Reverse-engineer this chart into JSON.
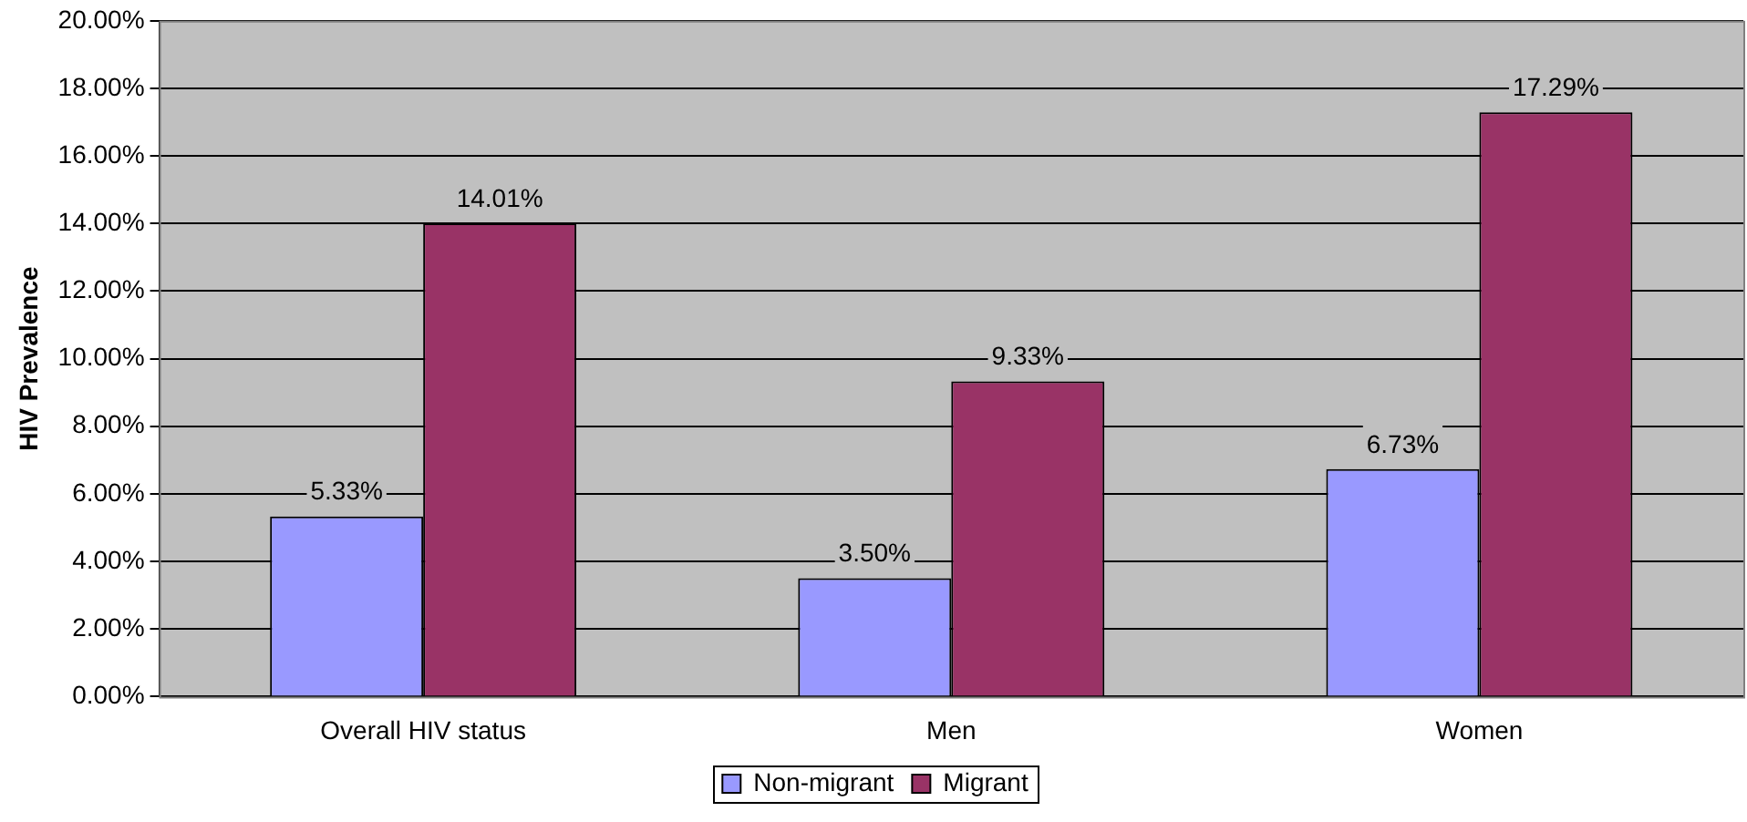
{
  "chart_data": {
    "type": "bar",
    "ylabel": "HIV Prevalence",
    "categories": [
      "Overall HIV status",
      "Men",
      "Women"
    ],
    "series": [
      {
        "name": "Non-migrant",
        "color": "#9999ff",
        "values": [
          5.33,
          3.5,
          6.73
        ],
        "value_labels": [
          "5.33%",
          "3.50%",
          "6.73%"
        ]
      },
      {
        "name": "Migrant",
        "color": "#993366",
        "values": [
          14.01,
          9.33,
          17.29
        ],
        "value_labels": [
          "14.01%",
          "9.33%",
          "17.29%"
        ]
      }
    ],
    "ylim": [
      0,
      20
    ],
    "yticks": [
      {
        "value": 0,
        "label": "0.00%"
      },
      {
        "value": 2,
        "label": "2.00%"
      },
      {
        "value": 4,
        "label": "4.00%"
      },
      {
        "value": 6,
        "label": "6.00%"
      },
      {
        "value": 8,
        "label": "8.00%"
      },
      {
        "value": 10,
        "label": "10.00%"
      },
      {
        "value": 12,
        "label": "12.00%"
      },
      {
        "value": 14,
        "label": "14.00%"
      },
      {
        "value": 16,
        "label": "16.00%"
      },
      {
        "value": 18,
        "label": "18.00%"
      },
      {
        "value": 20,
        "label": "20.00%"
      }
    ],
    "grid": "y",
    "legend": "bottom"
  }
}
